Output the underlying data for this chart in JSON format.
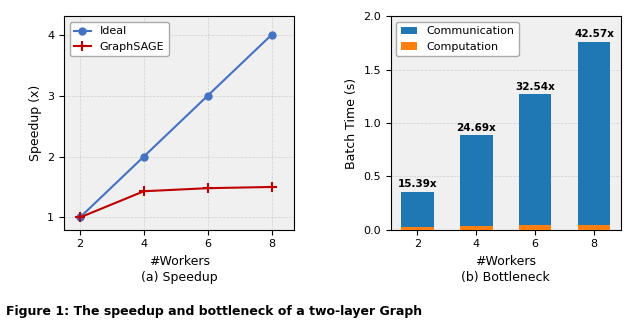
{
  "left": {
    "workers": [
      2,
      4,
      6,
      8
    ],
    "ideal": [
      1,
      2,
      3,
      4
    ],
    "graphsage": [
      1.0,
      1.43,
      1.48,
      1.5
    ],
    "ideal_color": "#4472C4",
    "graphsage_color": "#C00000",
    "ideal_marker": "o",
    "graphsage_marker": "+",
    "xlabel": "#Workers",
    "ylabel": "Speedup (x)",
    "ylim": [
      0.8,
      4.3
    ],
    "yticks": [
      1,
      2,
      3,
      4
    ],
    "xlim": [
      1.5,
      8.7
    ],
    "xticks": [
      2,
      4,
      6,
      8
    ],
    "legend_labels": [
      "Ideal",
      "GraphSAGE"
    ],
    "subtitle": "(a) Speedup"
  },
  "right": {
    "workers": [
      2,
      4,
      6,
      8
    ],
    "communication": [
      0.355,
      0.885,
      1.27,
      1.76
    ],
    "computation": [
      0.023,
      0.036,
      0.039,
      0.041
    ],
    "comm_color": "#1F77B4",
    "comp_color": "#FF7F0E",
    "annotations": [
      "15.39x",
      "24.69x",
      "32.54x",
      "42.57x"
    ],
    "xlabel": "#Workers",
    "ylabel": "Batch Time (s)",
    "ylim": [
      0,
      2.0
    ],
    "yticks": [
      0.0,
      0.5,
      1.0,
      1.5,
      2.0
    ],
    "legend_labels": [
      "Communication",
      "Computation"
    ],
    "subtitle": "(b) Bottleneck",
    "bar_width": 0.55
  },
  "figure_caption": "Figure 1: The speedup and bottleneck of a two-layer Graph",
  "bg_color": "#f0f0f0"
}
